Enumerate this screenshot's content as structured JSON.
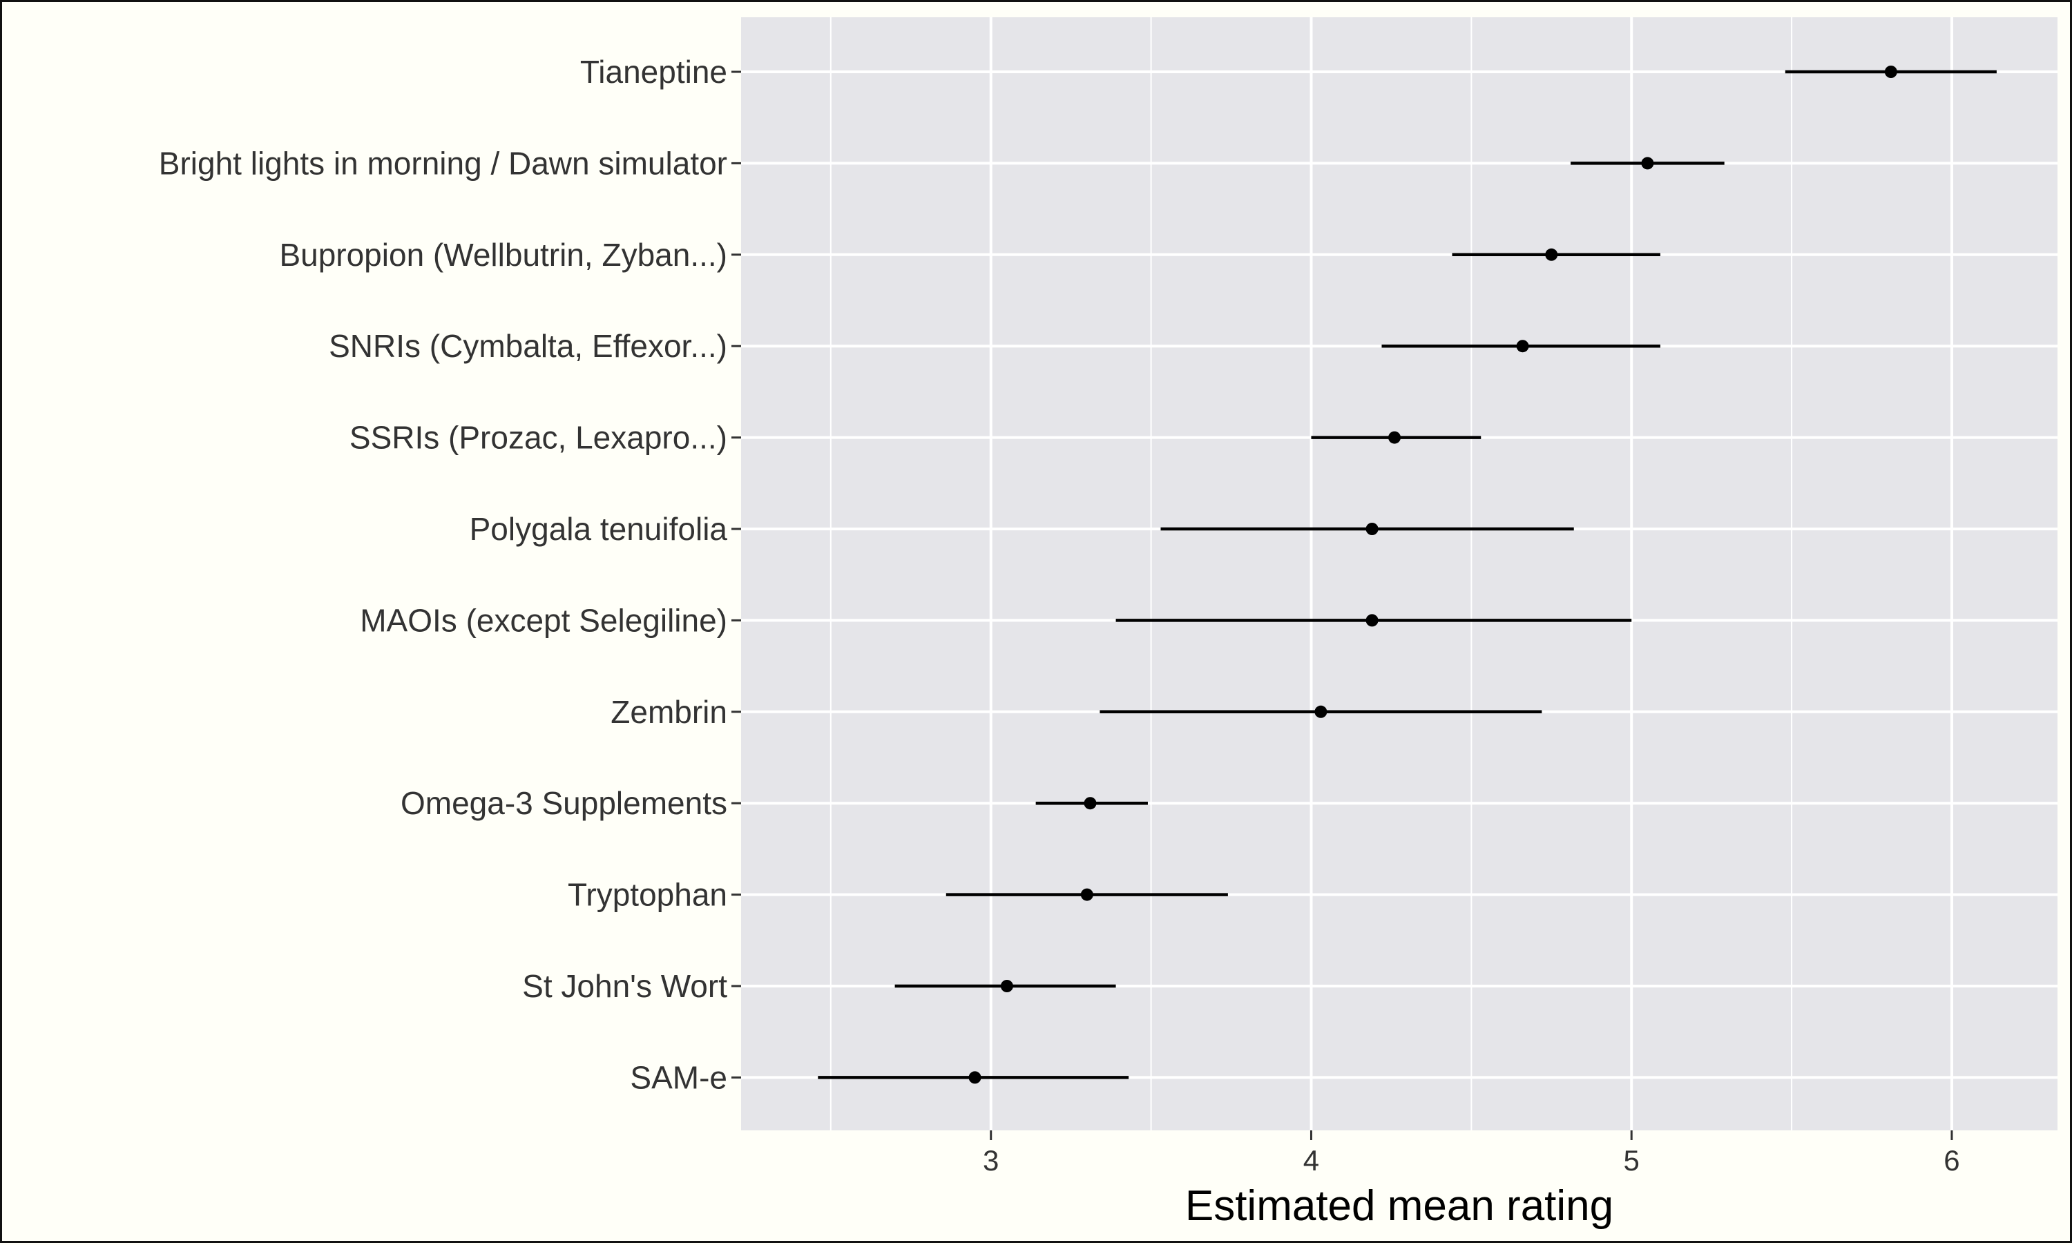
{
  "chart_data": {
    "type": "scatter",
    "subtype": "point-range",
    "title": "",
    "xlabel": "Estimated mean rating",
    "ylabel": "",
    "xlim": [
      2.22,
      6.33
    ],
    "xticks": [
      3,
      4,
      5,
      6
    ],
    "grid": true,
    "legend": "none",
    "colors": {
      "panel_bg": "#e5e5e9",
      "grid": "#ffffff",
      "point": "#000000",
      "tick_text": "#333333",
      "page_bg": "#fffff8"
    },
    "categories": [
      "Tianeptine",
      "Bright lights in morning / Dawn simulator",
      "Bupropion (Wellbutrin, Zyban...)",
      "SNRIs (Cymbalta, Effexor...)",
      "SSRIs (Prozac, Lexapro...)",
      "Polygala tenuifolia",
      "MAOIs (except Selegiline)",
      "Zembrin",
      "Omega-3 Supplements",
      "Tryptophan",
      "St John's Wort",
      "SAM-e"
    ],
    "points": [
      {
        "label": "Tianeptine",
        "mean": 5.81,
        "lower": 5.48,
        "upper": 6.14
      },
      {
        "label": "Bright lights in morning / Dawn simulator",
        "mean": 5.05,
        "lower": 4.81,
        "upper": 5.29
      },
      {
        "label": "Bupropion (Wellbutrin, Zyban...)",
        "mean": 4.75,
        "lower": 4.44,
        "upper": 5.09
      },
      {
        "label": "SNRIs (Cymbalta, Effexor...)",
        "mean": 4.66,
        "lower": 4.22,
        "upper": 5.09
      },
      {
        "label": "SSRIs (Prozac, Lexapro...)",
        "mean": 4.26,
        "lower": 4.0,
        "upper": 4.53
      },
      {
        "label": "Polygala tenuifolia",
        "mean": 4.19,
        "lower": 3.53,
        "upper": 4.82
      },
      {
        "label": "MAOIs (except Selegiline)",
        "mean": 4.19,
        "lower": 3.39,
        "upper": 5.0
      },
      {
        "label": "Zembrin",
        "mean": 4.03,
        "lower": 3.34,
        "upper": 4.72
      },
      {
        "label": "Omega-3 Supplements",
        "mean": 3.31,
        "lower": 3.14,
        "upper": 3.49
      },
      {
        "label": "Tryptophan",
        "mean": 3.3,
        "lower": 2.86,
        "upper": 3.74
      },
      {
        "label": "St John's Wort",
        "mean": 3.05,
        "lower": 2.7,
        "upper": 3.39
      },
      {
        "label": "SAM-e",
        "mean": 2.95,
        "lower": 2.46,
        "upper": 3.43
      }
    ]
  }
}
